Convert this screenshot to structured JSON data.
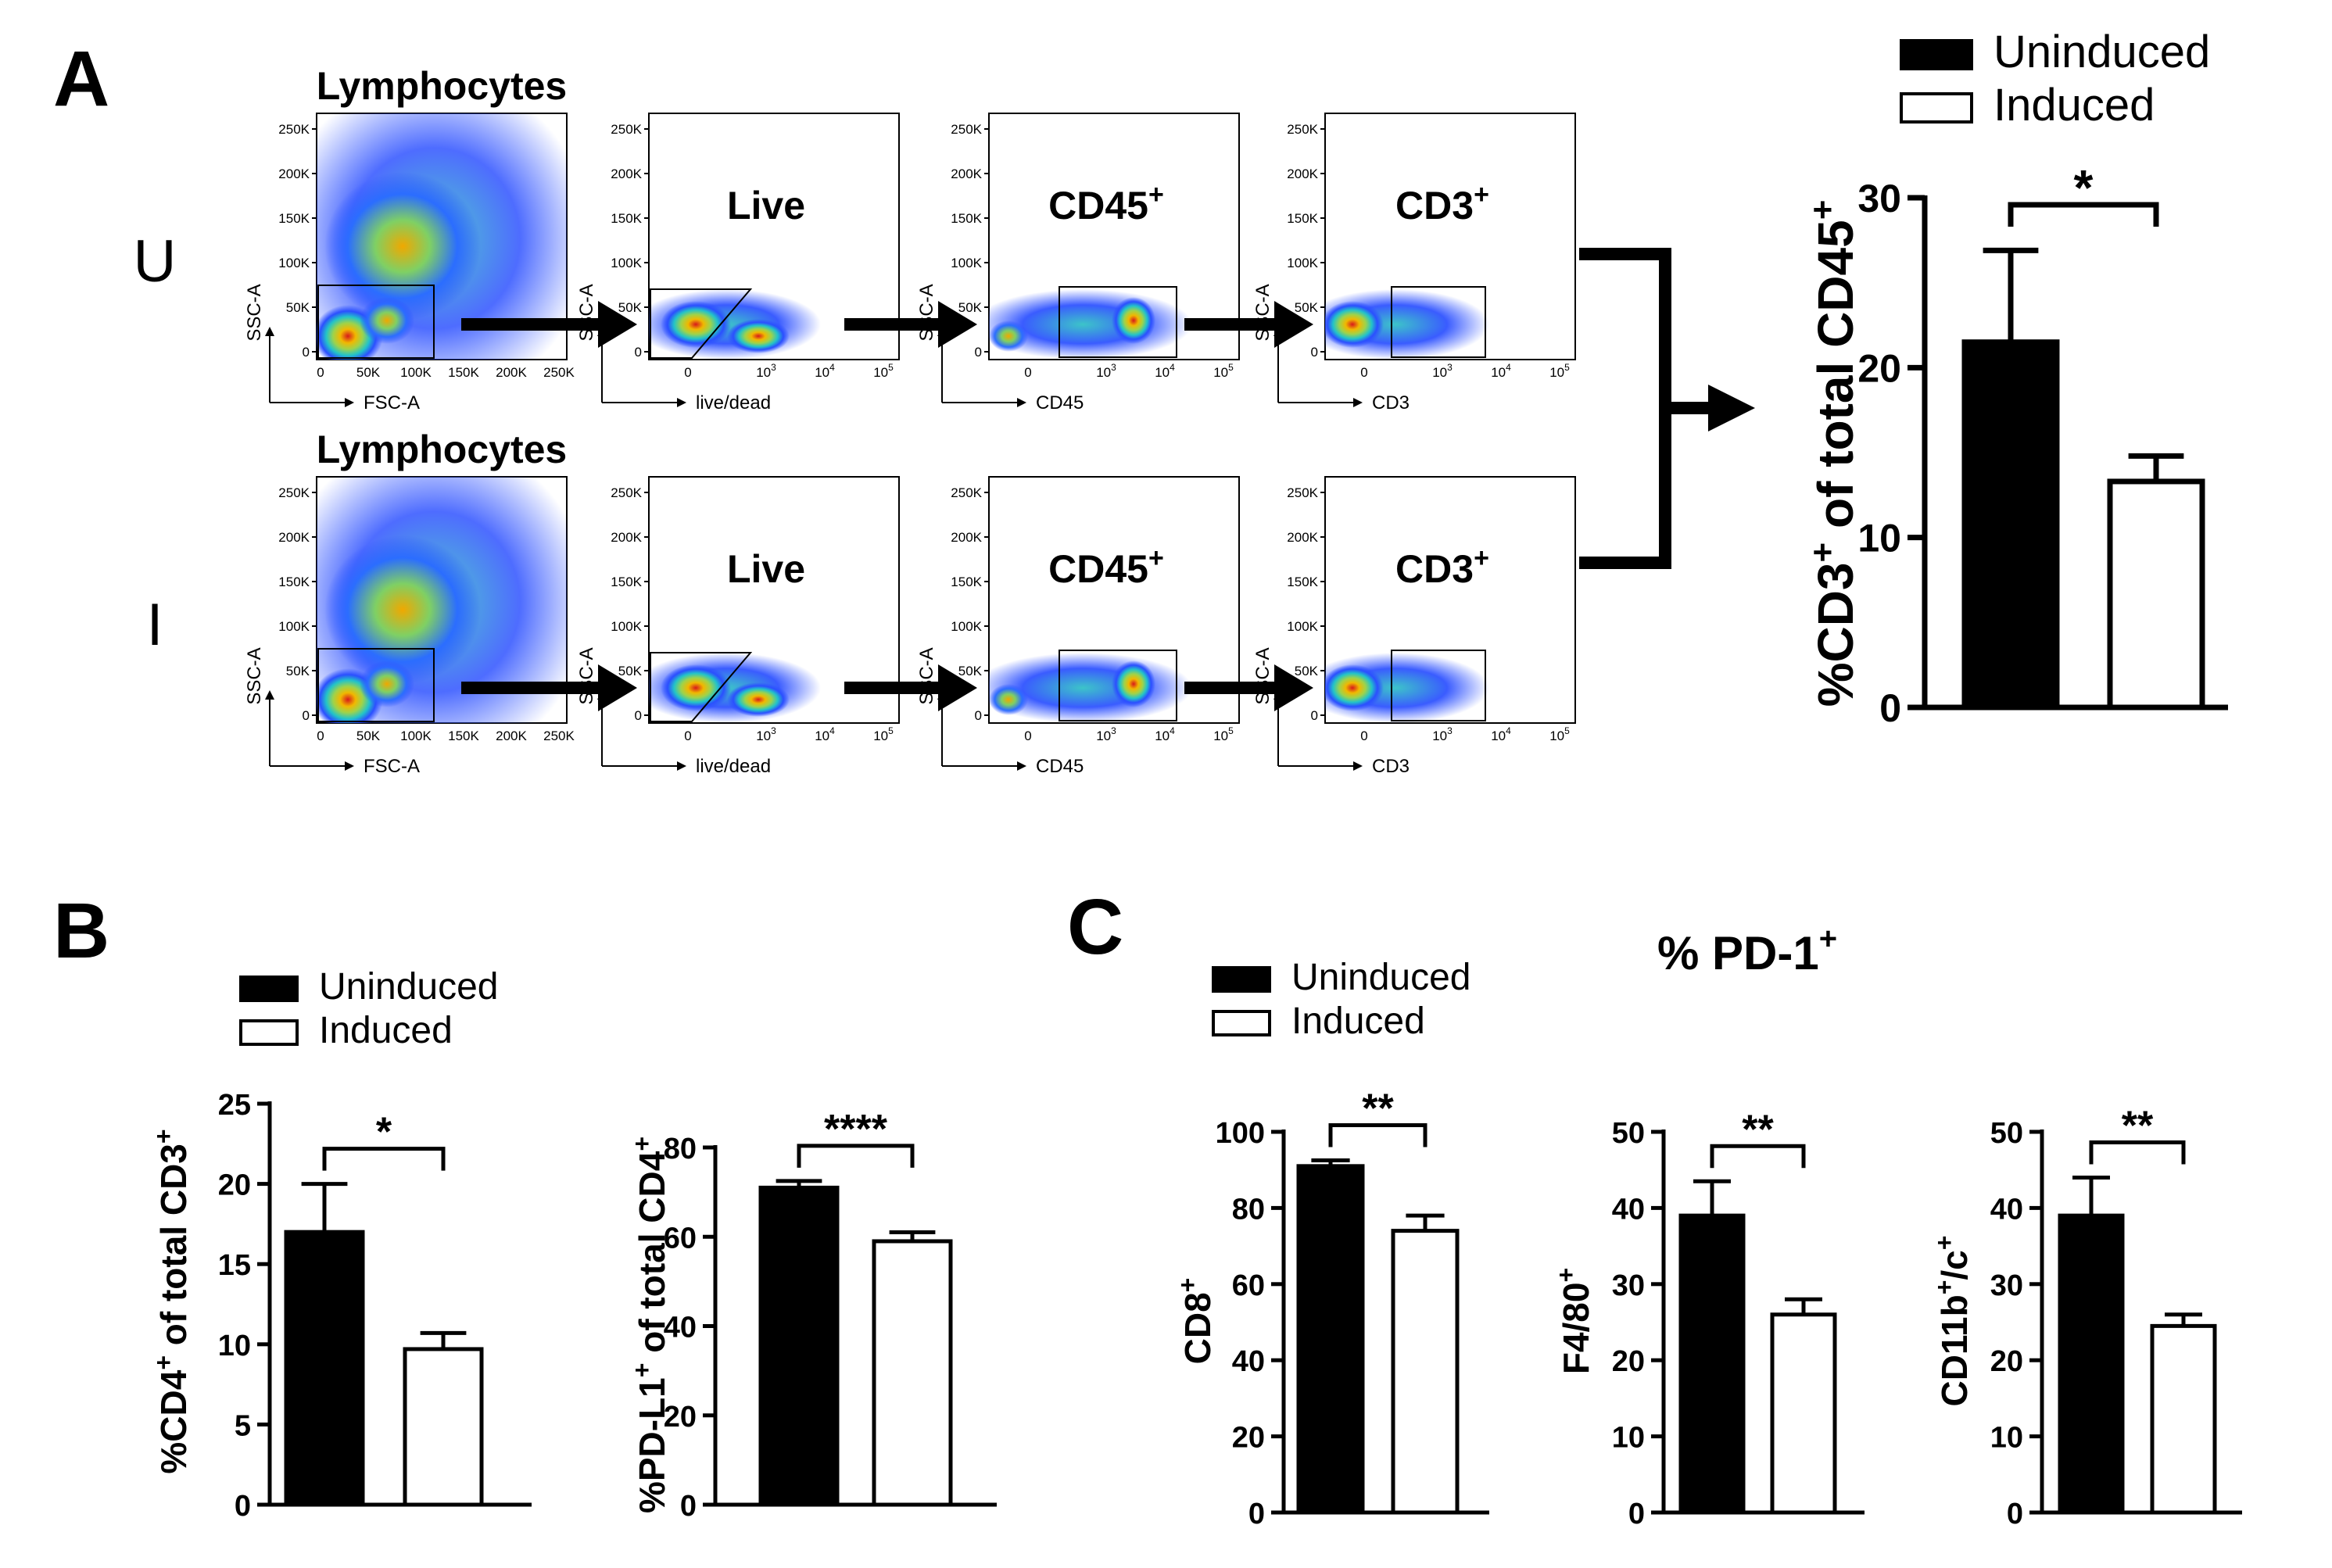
{
  "panels": {
    "a": "A",
    "b": "B",
    "c": "C"
  },
  "flow": {
    "rows": [
      {
        "label": "U",
        "gates": [
          "Lymphocytes",
          "Live",
          "CD45",
          "CD3"
        ]
      },
      {
        "label": "I",
        "gates": [
          "Lymphocytes",
          "Live",
          "CD45",
          "CD3"
        ]
      }
    ],
    "gate_superscript": "+",
    "xlabels": [
      "FSC-A",
      "live/dead",
      "CD45",
      "CD3"
    ],
    "ylabel": "SSC-A",
    "scatter_yticks": [
      "250K",
      "200K",
      "150K",
      "100K",
      "50K",
      "0"
    ],
    "scatter_xticks": [
      "0",
      "50K",
      "100K",
      "150K",
      "200K",
      "250K"
    ],
    "log_ticks": [
      "0",
      "10",
      "10",
      "10"
    ],
    "log_exponents": [
      "3",
      "4",
      "5"
    ]
  },
  "legend": {
    "uninduced": "Uninduced",
    "induced": "Induced"
  },
  "colors": {
    "uninduced": "#000000",
    "induced": "#ffffff"
  },
  "ctitle": {
    "text": "% PD-1",
    "sup": "+"
  },
  "chart_data": [
    {
      "id": "a",
      "type": "bar",
      "categories": [
        "Uninduced",
        "Induced"
      ],
      "values": [
        21.5,
        13.3
      ],
      "errors": [
        5.4,
        1.5
      ],
      "yticks": [
        "0",
        "10",
        "20",
        "30"
      ],
      "ylim": [
        0,
        30
      ],
      "ylabel": "%CD3+ of total CD45+",
      "ylabel_parts": [
        "%CD3",
        "+",
        " of total CD45",
        "+"
      ],
      "significance": "*"
    },
    {
      "id": "b1",
      "type": "bar",
      "categories": [
        "Uninduced",
        "Induced"
      ],
      "values": [
        17.0,
        9.7
      ],
      "errors": [
        3.0,
        1.0
      ],
      "yticks": [
        "0",
        "5",
        "10",
        "15",
        "20",
        "25"
      ],
      "ylim": [
        0,
        25
      ],
      "ylabel": "%CD4+ of total CD3+",
      "ylabel_parts": [
        "%CD4",
        "+",
        " of total CD3",
        "+"
      ],
      "significance": "*"
    },
    {
      "id": "b2",
      "type": "bar",
      "categories": [
        "Uninduced",
        "Induced"
      ],
      "values": [
        71.0,
        59.0
      ],
      "errors": [
        1.5,
        2.0
      ],
      "yticks": [
        "0",
        "20",
        "40",
        "60",
        "80"
      ],
      "ylim": [
        0,
        80
      ],
      "ylabel": "%PD-L1+ of total CD4+",
      "ylabel_parts": [
        "%PD-L1",
        "+",
        " of total CD4",
        "+"
      ],
      "significance": "****"
    },
    {
      "id": "c1",
      "type": "bar",
      "categories": [
        "Uninduced",
        "Induced"
      ],
      "values": [
        91.0,
        74.0
      ],
      "errors": [
        1.5,
        4.0
      ],
      "yticks": [
        "0",
        "20",
        "40",
        "60",
        "80",
        "100"
      ],
      "ylim": [
        0,
        100
      ],
      "ylabel": "CD8+",
      "ylabel_parts": [
        "CD8",
        "+",
        "",
        ""
      ],
      "significance": "**"
    },
    {
      "id": "c2",
      "type": "bar",
      "categories": [
        "Uninduced",
        "Induced"
      ],
      "values": [
        39.0,
        26.0
      ],
      "errors": [
        4.5,
        2.0
      ],
      "yticks": [
        "0",
        "10",
        "20",
        "30",
        "40",
        "50"
      ],
      "ylim": [
        0,
        50
      ],
      "ylabel": "F4/80+",
      "ylabel_parts": [
        "F4/80",
        "+",
        "",
        ""
      ],
      "significance": "**"
    },
    {
      "id": "c3",
      "type": "bar",
      "categories": [
        "Uninduced",
        "Induced"
      ],
      "values": [
        39.0,
        24.5
      ],
      "errors": [
        5.0,
        1.5
      ],
      "yticks": [
        "0",
        "10",
        "20",
        "30",
        "40",
        "50"
      ],
      "ylim": [
        0,
        50
      ],
      "ylabel": "CD11b+/c+",
      "ylabel_parts": [
        "CD11b",
        "+",
        "/c",
        "+"
      ],
      "significance": "**"
    }
  ]
}
